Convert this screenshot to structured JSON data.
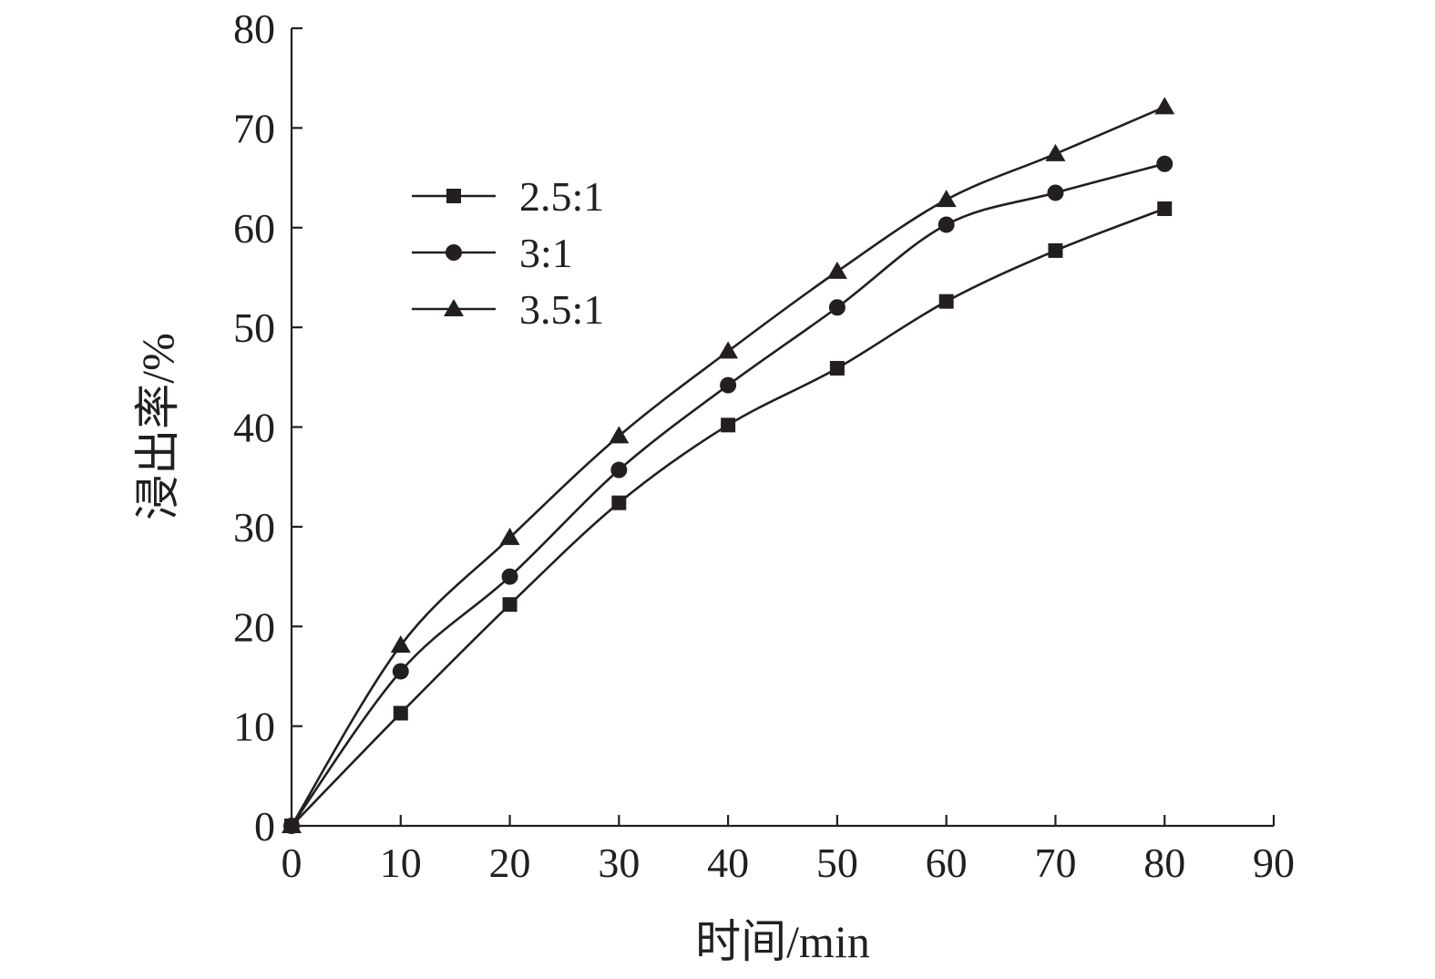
{
  "chart_data": {
    "type": "line",
    "title": "",
    "xlabel": "时间/min",
    "ylabel": "浸出率/%",
    "xlim": [
      0,
      90
    ],
    "ylim": [
      0,
      80
    ],
    "xticks": [
      0,
      10,
      20,
      30,
      40,
      50,
      60,
      70,
      80,
      90
    ],
    "yticks": [
      0,
      10,
      20,
      30,
      40,
      50,
      60,
      70,
      80
    ],
    "xtick_labels": [
      "0",
      "10",
      "20",
      "30",
      "40",
      "50",
      "60",
      "70",
      "80",
      "90"
    ],
    "ytick_labels": [
      "0",
      "10",
      "20",
      "30",
      "40",
      "50",
      "60",
      "70",
      "80"
    ],
    "grid": false,
    "legend_position": "upper-left",
    "x": [
      0,
      10,
      20,
      30,
      40,
      50,
      60,
      70,
      80
    ],
    "series": [
      {
        "name": "2.5:1",
        "marker": "square",
        "values": [
          0,
          11.3,
          22.2,
          32.4,
          40.2,
          45.9,
          52.6,
          57.7,
          61.9
        ]
      },
      {
        "name": "3:1",
        "marker": "circle",
        "values": [
          0,
          15.5,
          25.0,
          35.7,
          44.2,
          52.0,
          60.3,
          63.5,
          66.4
        ]
      },
      {
        "name": "3.5:1",
        "marker": "triangle",
        "values": [
          0,
          18.1,
          28.9,
          39.1,
          47.6,
          55.6,
          62.8,
          67.4,
          72.1
        ]
      }
    ],
    "colors": {
      "ink": "#231f20",
      "background": "#ffffff"
    }
  }
}
